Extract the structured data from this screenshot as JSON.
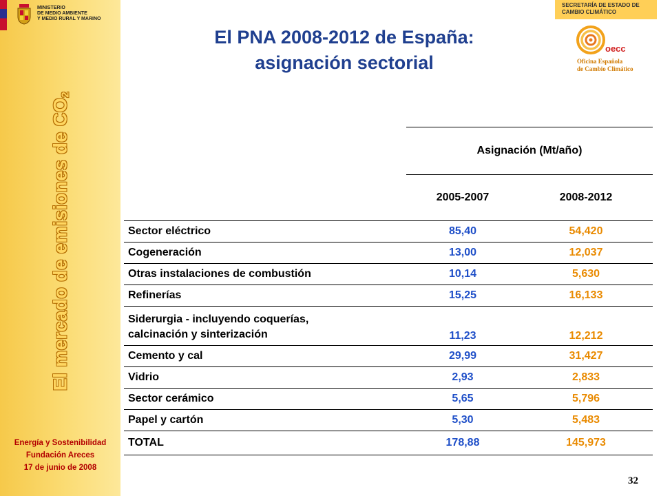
{
  "sidebar": {
    "ministry_lines": [
      "MINISTERIO",
      "DE MEDIO AMBIENTE",
      "Y MEDIO RURAL Y MARINO"
    ],
    "vertical_title": "El mercado de emisiones de CO",
    "vertical_title_sub": "2",
    "footer": [
      "Energía y Sostenibilidad",
      "Fundación Areces",
      "17 de junio de 2008"
    ]
  },
  "header": {
    "title_line1": "El PNA 2008-2012 de España:",
    "title_line2": "asignación sectorial",
    "secretaria": [
      "SECRETARÍA DE ESTADO DE",
      "CAMBIO CLIMÁTICO"
    ],
    "oecc_abbr": "oecc",
    "oecc_name": [
      "Oficina Española",
      "de Cambio Climático"
    ]
  },
  "table": {
    "group_header": "Asignación (Mt/año)",
    "columns": [
      "2005-2007",
      "2008-2012"
    ],
    "rows": [
      {
        "sector": "Sector eléctrico",
        "v2005": "85,40",
        "v2008": "54,420"
      },
      {
        "sector": "Cogeneración",
        "v2005": "13,00",
        "v2008": "12,037"
      },
      {
        "sector": "Otras instalaciones de combustión",
        "v2005": "10,14",
        "v2008": "5,630"
      },
      {
        "sector": "Refinerías",
        "v2005": "15,25",
        "v2008": "16,133"
      },
      {
        "sector_line1": "Siderurgia - incluyendo coquerías,",
        "sector_line2": "calcinación y sinterización",
        "v2005": "11,23",
        "v2008": "12,212"
      },
      {
        "sector": "Cemento y cal",
        "v2005": "29,99",
        "v2008": "31,427"
      },
      {
        "sector": "Vidrio",
        "v2005": "2,93",
        "v2008": "2,833"
      },
      {
        "sector": "Sector cerámico",
        "v2005": "5,65",
        "v2008": "5,796"
      },
      {
        "sector": "Papel y cartón",
        "v2005": "5,30",
        "v2008": "5,483"
      },
      {
        "sector": "TOTAL",
        "v2005": "178,88",
        "v2008": "145,973"
      }
    ]
  },
  "page_number": "32",
  "colors": {
    "title": "#1f3f8f",
    "value_2005": "#1f4fc8",
    "value_2008": "#e98a00",
    "sidebar_bg": "#fbdc74",
    "footer_text": "#b30000"
  }
}
